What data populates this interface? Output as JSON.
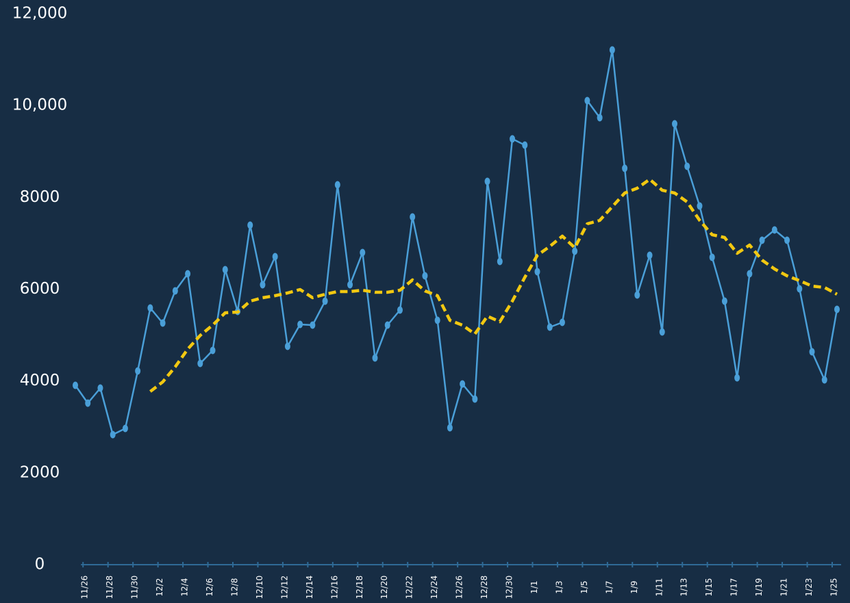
{
  "chart_data": {
    "type": "line",
    "categories": [
      null,
      "11/26",
      null,
      "11/28",
      null,
      "11/30",
      null,
      "12/2",
      null,
      "12/4",
      null,
      "12/6",
      null,
      "12/8",
      null,
      "12/10",
      null,
      "12/12",
      null,
      "12/14",
      null,
      "12/16",
      null,
      "12/18",
      null,
      "12/20",
      null,
      "12/22",
      null,
      "12/24",
      null,
      "12/26",
      null,
      "12/28",
      null,
      "12/30",
      null,
      "1/1",
      null,
      "1/3",
      null,
      "1/5",
      null,
      "1/7",
      null,
      "1/9",
      null,
      "1/11",
      null,
      "1/13",
      null,
      "1/15",
      null,
      "1/17",
      null,
      "1/19",
      null,
      "1/21",
      null,
      "1/23",
      null,
      "1/25"
    ],
    "series": [
      {
        "color": "#4a9fd8",
        "marker": true,
        "dashed": false,
        "values": [
          3906,
          3518,
          3846,
          2832,
          2966,
          4219,
          5590,
          5262,
          5963,
          6336,
          4383,
          4666,
          6425,
          5516,
          7394,
          6097,
          6708,
          4755,
          5233,
          5218,
          5739,
          8274,
          6097,
          6798,
          4502,
          5218,
          5546,
          7573,
          6291,
          5322,
          2981,
          3936,
          3608,
          8348,
          6604,
          9273,
          9138,
          6381,
          5173,
          5277,
          6828,
          10107,
          9735,
          11210,
          8632,
          5874,
          6738,
          5069,
          9601,
          8676,
          7812,
          6694,
          5739,
          4070,
          6336,
          7066,
          7290,
          7066,
          6008,
          4636,
          4025,
          5560
        ]
      },
      {
        "color": "#f2c811",
        "marker": false,
        "dashed": true,
        "values": [
          null,
          null,
          null,
          null,
          null,
          null,
          3772,
          3980,
          4308,
          4696,
          4994,
          5218,
          5486,
          5500,
          5739,
          5814,
          5859,
          5918,
          5993,
          5814,
          5889,
          5948,
          5948,
          5978,
          5933,
          5933,
          5978,
          6201,
          5963,
          5859,
          5322,
          5218,
          5024,
          5411,
          5292,
          5739,
          6261,
          6738,
          6932,
          7156,
          6902,
          7424,
          7498,
          7797,
          8095,
          8199,
          8393,
          8155,
          8095,
          7901,
          7498,
          7186,
          7126,
          6783,
          6962,
          6634,
          6440,
          6291,
          6186,
          6067,
          6038,
          5889
        ]
      }
    ],
    "ylim": [
      0,
      12000
    ],
    "yticks": [
      0,
      2000,
      4000,
      6000,
      8000,
      {
        "value": 10000,
        "label": "10,000"
      },
      {
        "value": 12000,
        "label": "12,000"
      }
    ],
    "grid": false
  }
}
